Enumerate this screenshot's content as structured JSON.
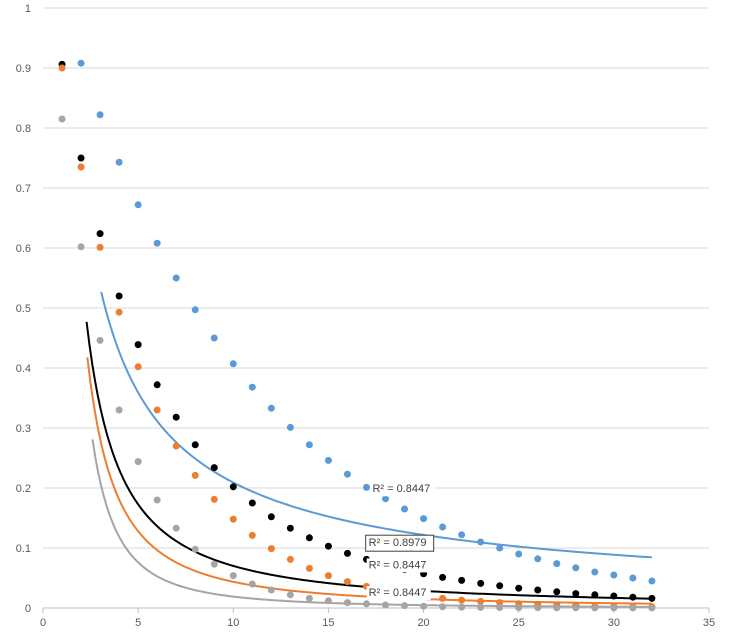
{
  "chart_data": {
    "type": "scatter",
    "title": "",
    "xlabel": "",
    "ylabel": "",
    "xlim": [
      0,
      35
    ],
    "ylim": [
      0,
      1
    ],
    "x_ticks": [
      "0",
      "5",
      "10",
      "15",
      "20",
      "25",
      "30",
      "35"
    ],
    "y_ticks": [
      "0",
      "0.1",
      "0.2",
      "0.3",
      "0.4",
      "0.5",
      "0.6",
      "0.7",
      "0.8",
      "0.9",
      "1"
    ],
    "grid": "horizontal",
    "x": [
      1,
      2,
      3,
      4,
      5,
      6,
      7,
      8,
      9,
      10,
      11,
      12,
      13,
      14,
      15,
      16,
      17,
      18,
      19,
      20,
      21,
      22,
      23,
      24,
      25,
      26,
      27,
      28,
      29,
      30,
      31,
      32
    ],
    "series": [
      {
        "color": "#5b9bd5",
        "values": [
          0.906,
          0.908,
          0.822,
          0.743,
          0.672,
          0.608,
          0.55,
          0.497,
          0.45,
          0.407,
          0.368,
          0.333,
          0.301,
          0.272,
          0.246,
          0.223,
          0.201,
          0.182,
          0.165,
          0.149,
          0.135,
          0.122,
          0.11,
          0.1,
          0.09,
          0.082,
          0.074,
          0.067,
          0.06,
          0.055,
          0.05,
          0.045
        ],
        "trendline": {
          "type": "power",
          "a": 1.26,
          "b": -0.78,
          "x_range": [
            3.06,
            32
          ],
          "r2_label": "R² = 0.8447",
          "label_boxed": false
        }
      },
      {
        "color": "#000000",
        "values": [
          0.906,
          0.75,
          0.624,
          0.52,
          0.439,
          0.372,
          0.318,
          0.272,
          0.234,
          0.202,
          0.175,
          0.152,
          0.133,
          0.117,
          0.103,
          0.091,
          0.081,
          0.072,
          0.064,
          0.057,
          0.051,
          0.046,
          0.041,
          0.037,
          0.033,
          0.03,
          0.027,
          0.024,
          0.022,
          0.02,
          0.018,
          0.016
        ],
        "trendline": {
          "type": "power",
          "a": 1.4,
          "b": -1.3,
          "x_range": [
            2.29,
            32
          ],
          "r2_label": "R² = 0.8979",
          "label_boxed": true
        }
      },
      {
        "color": "#ed7d31",
        "values": [
          0.9,
          0.735,
          0.601,
          0.493,
          0.402,
          0.33,
          0.27,
          0.221,
          0.181,
          0.148,
          0.121,
          0.099,
          0.081,
          0.066,
          0.054,
          0.044,
          0.036,
          0.03,
          0.024,
          0.02,
          0.016,
          0.013,
          0.011,
          0.009,
          0.007,
          0.006,
          0.005,
          0.004,
          0.003,
          0.003,
          0.002,
          0.002
        ],
        "trendline": {
          "type": "power",
          "a": 1.55,
          "b": -1.55,
          "x_range": [
            2.33,
            32
          ],
          "r2_label": "R² = 0.8447",
          "label_boxed": false
        }
      },
      {
        "color": "#a5a5a5",
        "values": [
          0.815,
          0.602,
          0.446,
          0.33,
          0.244,
          0.18,
          0.133,
          0.098,
          0.073,
          0.054,
          0.04,
          0.03,
          0.022,
          0.016,
          0.012,
          0.009,
          0.007,
          0.005,
          0.004,
          0.003,
          0.002,
          0.0015,
          0.001,
          0.0008,
          0.0006,
          0.0005,
          0.0004,
          0.0003,
          0.0002,
          0.0002,
          0.0001,
          0.0001
        ],
        "trendline": {
          "type": "power",
          "a": 1.9,
          "b": -2.0,
          "x_range": [
            2.6,
            32
          ],
          "r2_label": "R² = 0.8447",
          "label_boxed": false
        }
      }
    ]
  }
}
